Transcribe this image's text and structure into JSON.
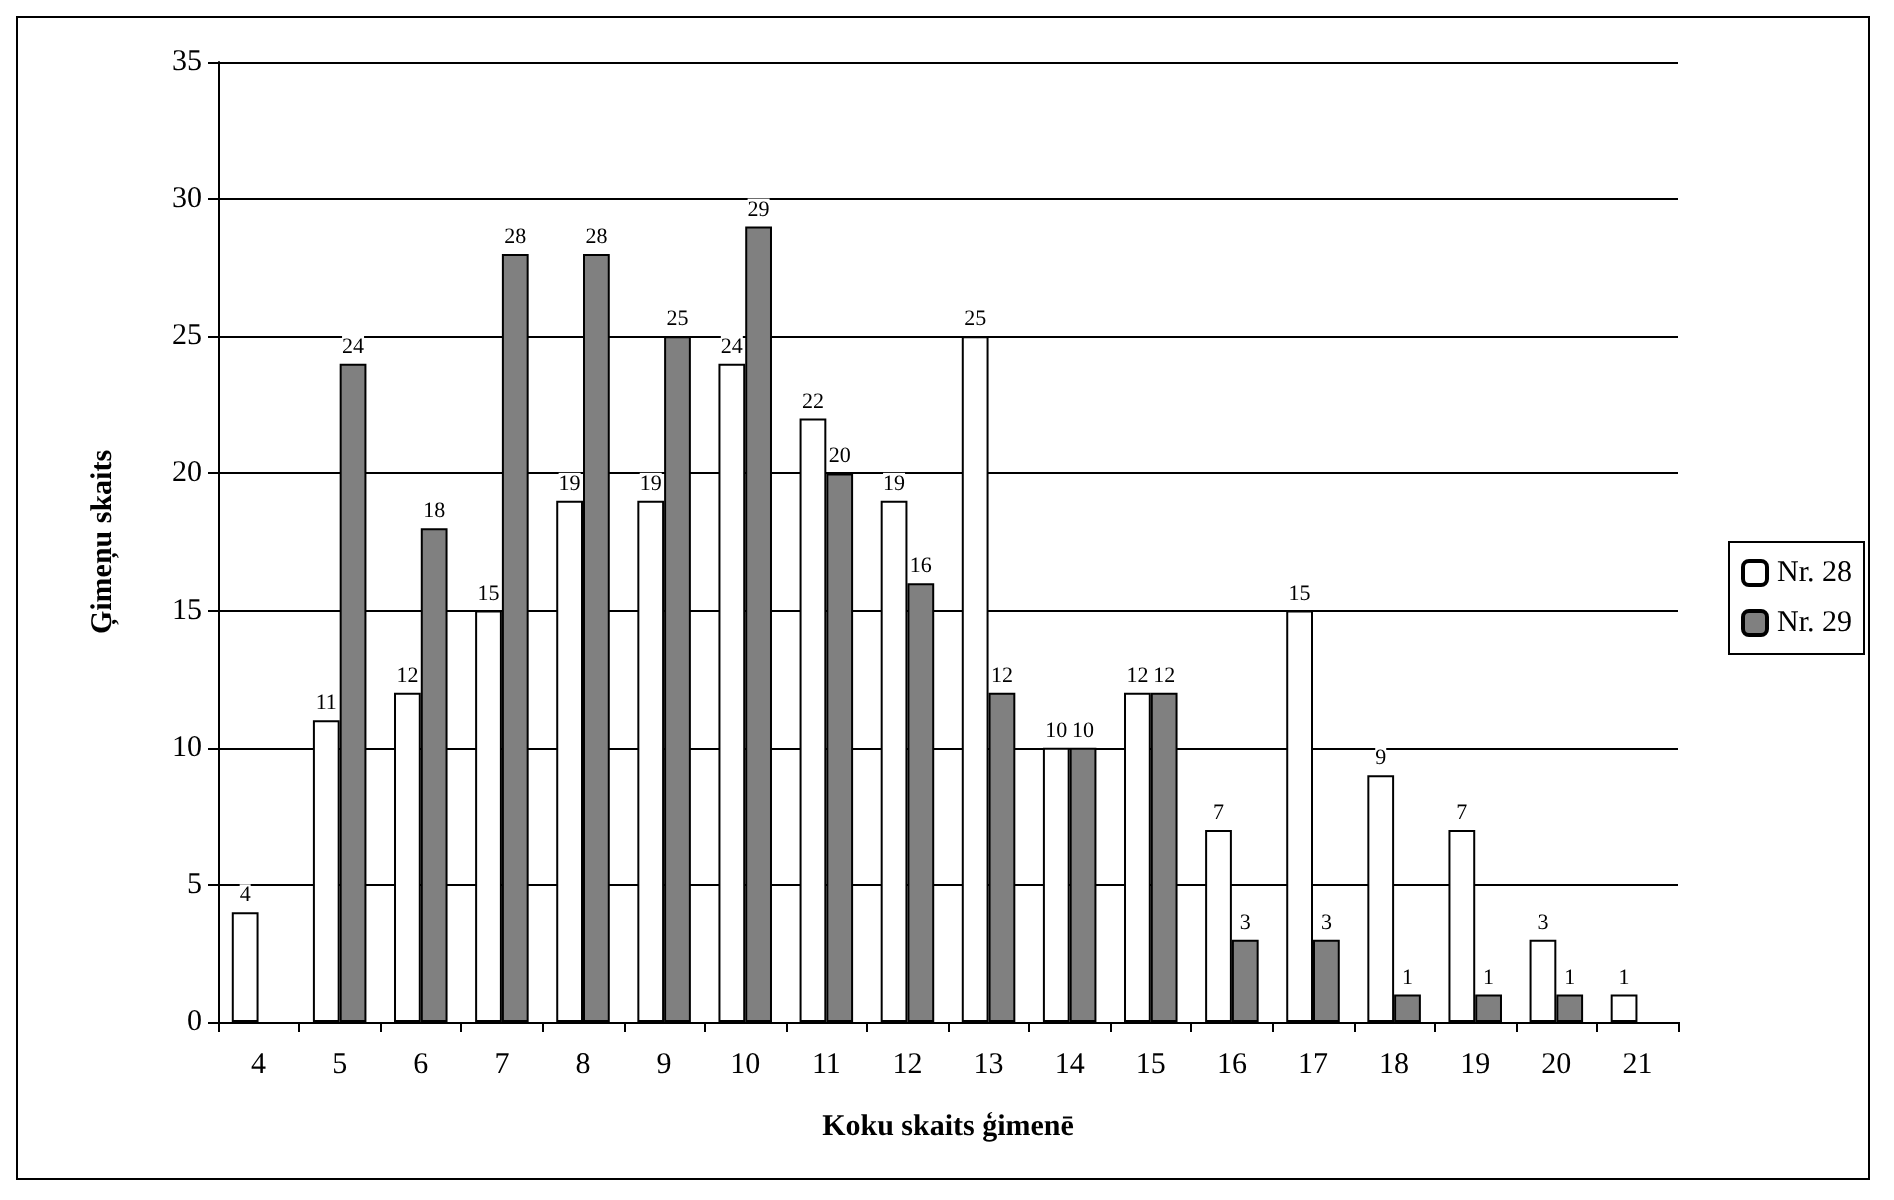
{
  "chart_data": {
    "type": "bar",
    "xlabel": "Koku skaits ģimenē",
    "ylabel": "Ģimeņu skaits",
    "categories": [
      "4",
      "5",
      "6",
      "7",
      "8",
      "9",
      "10",
      "11",
      "12",
      "13",
      "14",
      "15",
      "16",
      "17",
      "18",
      "19",
      "20",
      "21"
    ],
    "series": [
      {
        "name": "Nr. 28",
        "color": "#ffffff",
        "values": [
          4,
          11,
          12,
          15,
          19,
          19,
          24,
          22,
          19,
          25,
          10,
          12,
          7,
          15,
          9,
          7,
          3,
          1
        ]
      },
      {
        "name": "Nr. 29",
        "color": "#808080",
        "values": [
          null,
          24,
          18,
          28,
          28,
          25,
          29,
          20,
          16,
          12,
          10,
          12,
          3,
          3,
          1,
          1,
          1,
          null
        ]
      }
    ],
    "ylim": [
      0,
      35
    ],
    "yticks": [
      0,
      5,
      10,
      15,
      20,
      25,
      30,
      35
    ],
    "grid": "y",
    "legend": "right",
    "data_labels": true
  }
}
